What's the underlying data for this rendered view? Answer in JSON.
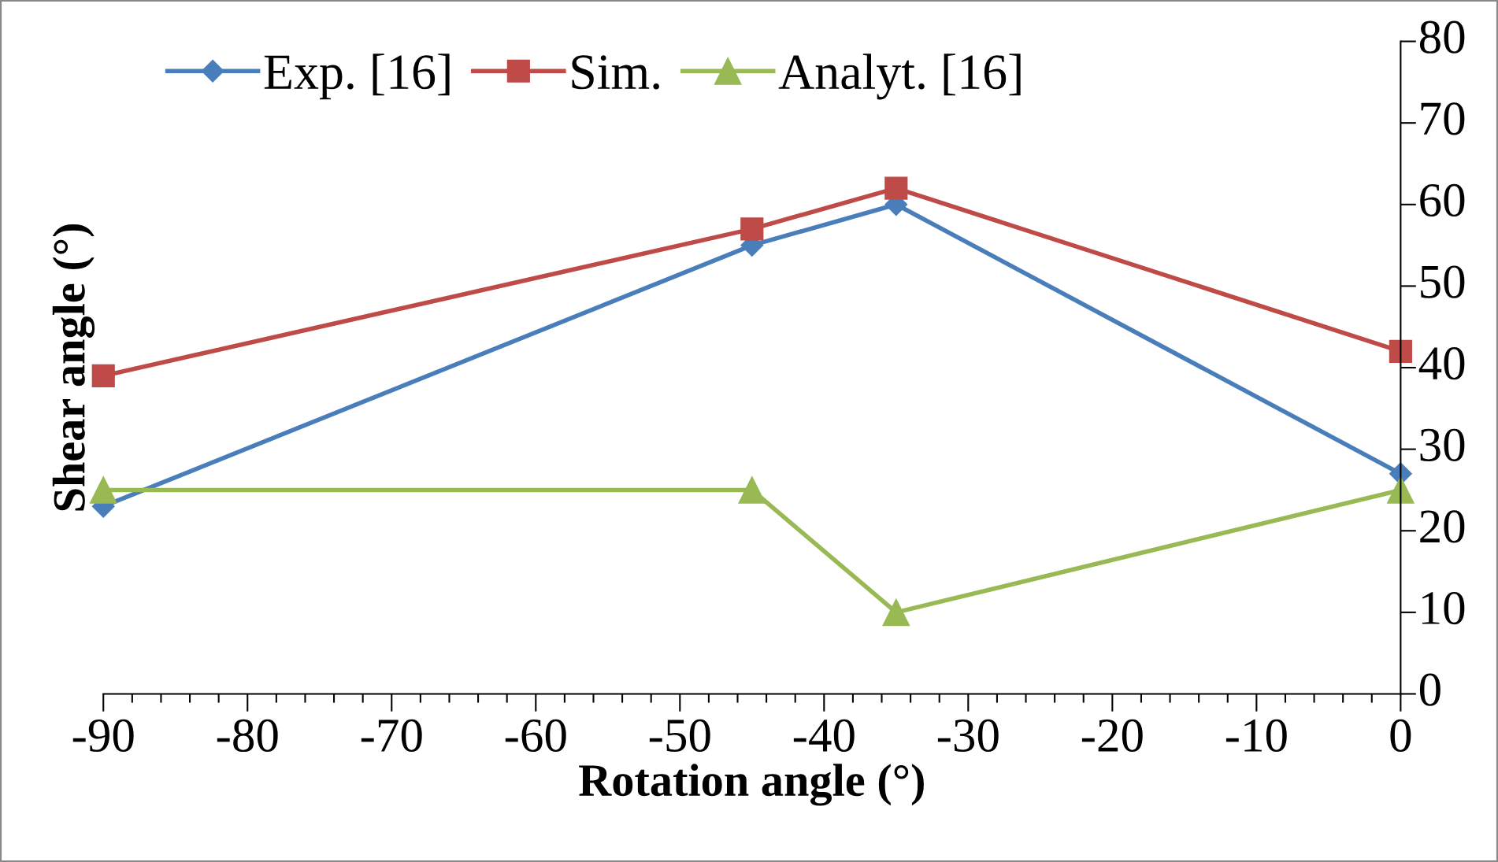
{
  "chart_data": {
    "type": "line",
    "xlabel": "Rotation angle (°)",
    "ylabel": "Shear angle (°)",
    "x": [
      -90,
      -45,
      -35,
      0
    ],
    "series": [
      {
        "name": "Exp. [16]",
        "color": "#4a7ebb",
        "marker": "diamond",
        "values": [
          23,
          55,
          60,
          27
        ]
      },
      {
        "name": "Sim.",
        "color": "#be4b48",
        "marker": "square",
        "values": [
          39,
          57,
          62,
          42
        ]
      },
      {
        "name": "Analyt. [16]",
        "color": "#98b954",
        "marker": "triangle",
        "values": [
          25,
          25,
          10,
          25
        ]
      }
    ],
    "xlim": [
      -90,
      0
    ],
    "xticks": [
      -90,
      -80,
      -70,
      -60,
      -50,
      -40,
      -30,
      -20,
      -10,
      0
    ],
    "ylim": [
      0,
      80
    ],
    "yticks": [
      0,
      10,
      20,
      30,
      40,
      50,
      60,
      70,
      80
    ],
    "grid": false,
    "legend": "top left",
    "line_style": "solid"
  }
}
